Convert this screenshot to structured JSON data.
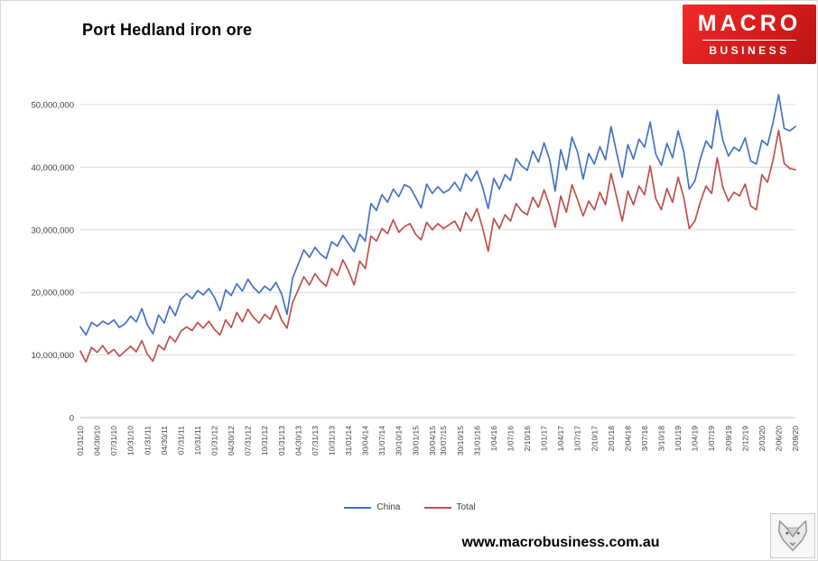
{
  "title": "Port Hedland iron ore",
  "logo": {
    "line1": "MACRO",
    "line2": "BUSINESS",
    "background_color": "#d61c1c"
  },
  "footer": {
    "url": "www.macrobusiness.com.au"
  },
  "legend": {
    "items": [
      {
        "label": "China"
      },
      {
        "label": "Total"
      }
    ]
  },
  "chart_data": {
    "type": "line",
    "title": "Port Hedland iron ore",
    "xlabel": "",
    "ylabel": "",
    "ylim": [
      0,
      50000000
    ],
    "grid": "horizontal",
    "legend_position": "bottom",
    "y_ticks": [
      0,
      10000000,
      20000000,
      30000000,
      40000000,
      50000000
    ],
    "y_tick_labels": [
      "0",
      "10,000,000",
      "20,000,000",
      "30,000,000",
      "40,000,000",
      "50,000,000"
    ],
    "x_tick_labels": [
      "01/31/10",
      "04/30/10",
      "07/31/10",
      "10/31/10",
      "01/31/11",
      "04/30/11",
      "07/31/11",
      "10/31/11",
      "01/31/12",
      "04/30/12",
      "07/31/12",
      "10/31/12",
      "01/31/13",
      "04/30/13",
      "07/31/13",
      "10/31/13",
      "31/01/14",
      "30/04/14",
      "31/07/14",
      "30/10/14",
      "30/01/15",
      "30/04/15",
      "30/07/15",
      "30/10/15",
      "31/01/16",
      "1/04/16",
      "1/07/16",
      "2/10/16",
      "1/01/17",
      "1/04/17",
      "1/07/17",
      "2/10/17",
      "2/01/18",
      "2/04/18",
      "3/07/18",
      "3/10/18",
      "1/01/19",
      "1/04/19",
      "1/07/19",
      "2/09/19",
      "2/12/19",
      "2/03/20",
      "2/06/20",
      "2/09/20"
    ],
    "series": [
      {
        "name": "China",
        "color": "#4472c4",
        "values": [
          14500000.0,
          13200000.0,
          15200000.0,
          14600000.0,
          15400000.0,
          14900000.0,
          15600000.0,
          14400000.0,
          15000000.0,
          16200000.0,
          15300000.0,
          17400000.0,
          14800000.0,
          13400000.0,
          16400000.0,
          15100000.0,
          17800000.0,
          16300000.0,
          18900000.0,
          19800000.0,
          19000000.0,
          20300000.0,
          19600000.0,
          20600000.0,
          19200000.0,
          17100000.0,
          20400000.0,
          19500000.0,
          21400000.0,
          20200000.0,
          22100000.0,
          20800000.0,
          19900000.0,
          21000000.0,
          20300000.0,
          21600000.0,
          19800000.0,
          16500000.0,
          22300000.0,
          24500000.0,
          26800000.0,
          25600000.0,
          27200000.0,
          26100000.0,
          25400000.0,
          28100000.0,
          27400000.0,
          29100000.0,
          27800000.0,
          26500000.0,
          29300000.0,
          28200000.0,
          34200000.0,
          33100000.0,
          35600000.0,
          34400000.0,
          36500000.0,
          35300000.0,
          37200000.0,
          36800000.0,
          35200000.0,
          33500000.0,
          37300000.0,
          35800000.0,
          36900000.0,
          35900000.0,
          36400000.0,
          37600000.0,
          36200000.0,
          38900000.0,
          37800000.0,
          39400000.0,
          36800000.0,
          33400000.0,
          38200000.0,
          36500000.0,
          38800000.0,
          37900000.0,
          41400000.0,
          40200000.0,
          39500000.0,
          42600000.0,
          40800000.0,
          43900000.0,
          41200000.0,
          36200000.0,
          42800000.0,
          39600000.0,
          44800000.0,
          42400000.0,
          38100000.0,
          42200000.0,
          40500000.0,
          43300000.0,
          41200000.0,
          46500000.0,
          42300000.0,
          38400000.0,
          43600000.0,
          41300000.0,
          44500000.0,
          43200000.0,
          47200000.0,
          42100000.0,
          40300000.0,
          43800000.0,
          41500000.0,
          45800000.0,
          42500000.0,
          36500000.0,
          37800000.0,
          41400000.0,
          44200000.0,
          43000000.0,
          49100000.0,
          44300000.0,
          41800000.0,
          43200000.0,
          42600000.0,
          44700000.0,
          41000000.0,
          40500000.0,
          44300000.0,
          43500000.0,
          47200000.0,
          51600000.0,
          46200000.0,
          45800000.0,
          46500000.0
        ]
      },
      {
        "name": "Total",
        "color": "#c0504d",
        "values": [
          10600000.0,
          8900000.0,
          11200000.0,
          10400000.0,
          11500000.0,
          10200000.0,
          10900000.0,
          9800000.0,
          10600000.0,
          11400000.0,
          10500000.0,
          12300000.0,
          10100000.0,
          9000000.0,
          11600000.0,
          10800000.0,
          13000000.0,
          12100000.0,
          13800000.0,
          14500000.0,
          13900000.0,
          15200000.0,
          14300000.0,
          15400000.0,
          14100000.0,
          13200000.0,
          15600000.0,
          14400000.0,
          16800000.0,
          15300000.0,
          17300000.0,
          16000000.0,
          15100000.0,
          16500000.0,
          15700000.0,
          17900000.0,
          15600000.0,
          14300000.0,
          18400000.0,
          20400000.0,
          22500000.0,
          21200000.0,
          23000000.0,
          21800000.0,
          21000000.0,
          23800000.0,
          22700000.0,
          25200000.0,
          23400000.0,
          21200000.0,
          25000000.0,
          23800000.0,
          29000000.0,
          28200000.0,
          30200000.0,
          29400000.0,
          31600000.0,
          29600000.0,
          30500000.0,
          31000000.0,
          29300000.0,
          28400000.0,
          31200000.0,
          30000000.0,
          31000000.0,
          30200000.0,
          30800000.0,
          31400000.0,
          29800000.0,
          32800000.0,
          31400000.0,
          33400000.0,
          30300000.0,
          26600000.0,
          31800000.0,
          30200000.0,
          32400000.0,
          31400000.0,
          34200000.0,
          33000000.0,
          32400000.0,
          35200000.0,
          33600000.0,
          36400000.0,
          33800000.0,
          30400000.0,
          35400000.0,
          32800000.0,
          37200000.0,
          34800000.0,
          32200000.0,
          34600000.0,
          33200000.0,
          36000000.0,
          34000000.0,
          39000000.0,
          35200000.0,
          31400000.0,
          36200000.0,
          34000000.0,
          37000000.0,
          35600000.0,
          40200000.0,
          35000000.0,
          33200000.0,
          36600000.0,
          34400000.0,
          38400000.0,
          35200000.0,
          30200000.0,
          31400000.0,
          34500000.0,
          37000000.0,
          35800000.0,
          41500000.0,
          36800000.0,
          34600000.0,
          36000000.0,
          35400000.0,
          37300000.0,
          33800000.0,
          33200000.0,
          38800000.0,
          37600000.0,
          41200000.0,
          45900000.0,
          40600000.0,
          39800000.0,
          39600000.0
        ]
      }
    ]
  }
}
